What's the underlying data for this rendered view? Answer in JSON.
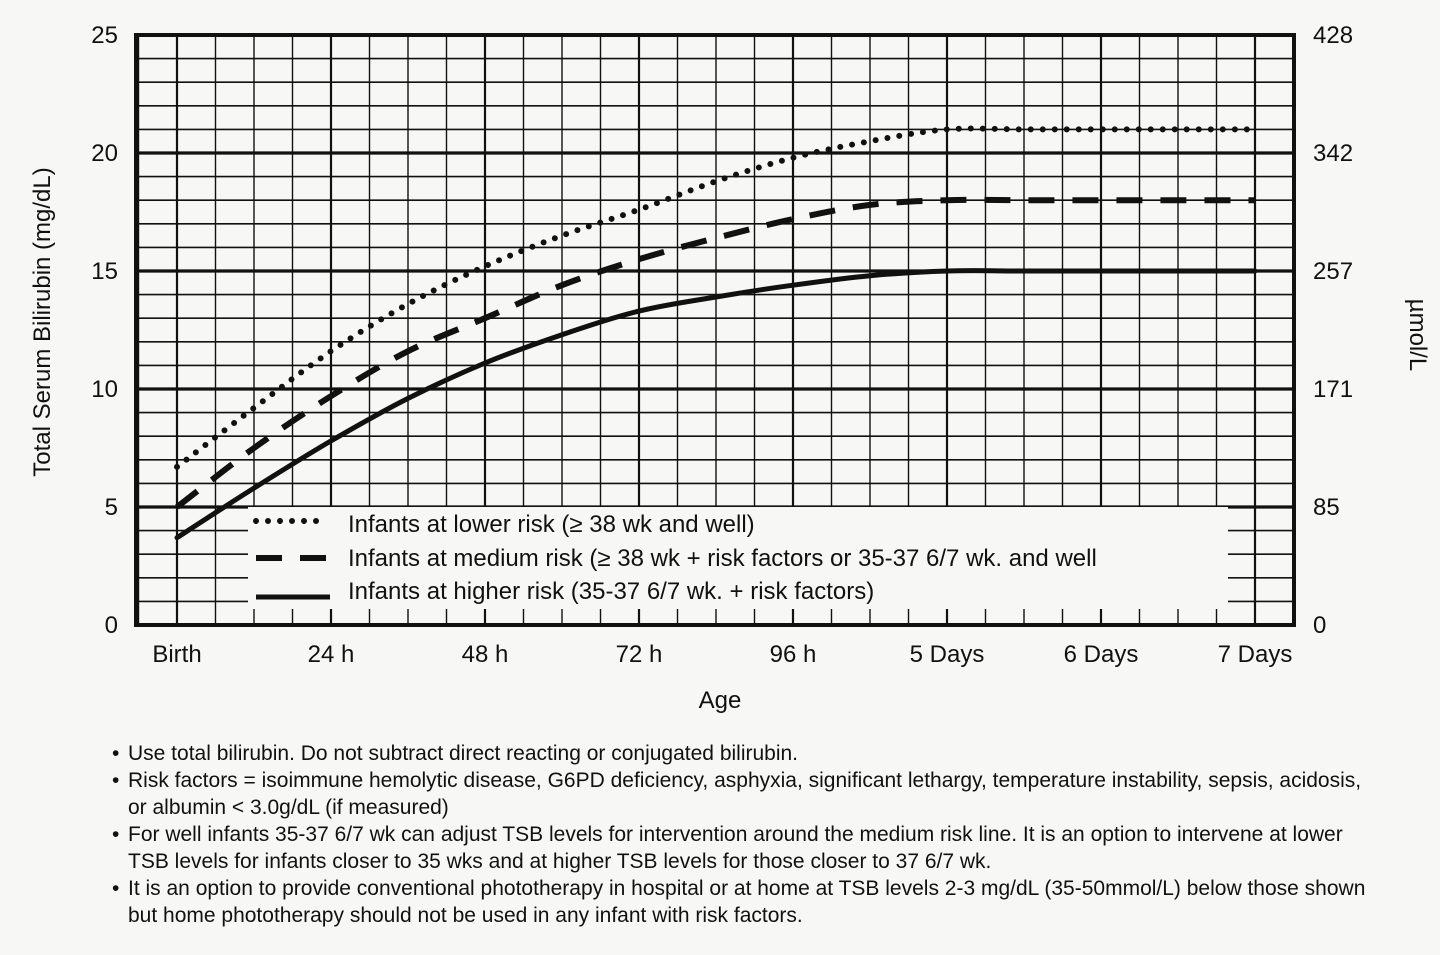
{
  "chart_data": {
    "type": "line",
    "title": "",
    "xlabel": "Age",
    "ylabel": "Total Serum Bilirubin (mg/dL)",
    "y2label": "µmol/L",
    "x_tick_labels": [
      "Birth",
      "24 h",
      "48 h",
      "72 h",
      "96 h",
      "5 Days",
      "6 Days",
      "7 Days"
    ],
    "x_unit": "hours",
    "xlim": [
      0,
      168
    ],
    "ylim": [
      0,
      25
    ],
    "y_ticks": [
      0,
      5,
      10,
      15,
      20,
      25
    ],
    "y2_ticks": [
      {
        "at": 0,
        "label": "0"
      },
      {
        "at": 5,
        "label": "85"
      },
      {
        "at": 10,
        "label": "171"
      },
      {
        "at": 15,
        "label": "257"
      },
      {
        "at": 20,
        "label": "342"
      },
      {
        "at": 25,
        "label": "428"
      }
    ],
    "grid": true,
    "legend_position": "bottom-center",
    "series": [
      {
        "name": "Infants at lower risk (≥ 38 wk and well)",
        "style": "dotted",
        "x": [
          0,
          12,
          24,
          36,
          48,
          60,
          72,
          84,
          96,
          108,
          120,
          132,
          144,
          156,
          168
        ],
        "y": [
          6.7,
          9.2,
          11.6,
          13.6,
          15.2,
          16.5,
          17.6,
          18.8,
          19.8,
          20.5,
          21.0,
          21.0,
          21.0,
          21.0,
          21.0
        ]
      },
      {
        "name": "Infants at medium risk (≥ 38 wk + risk factors or 35-37 6/7 wk. and well",
        "style": "dashed",
        "x": [
          0,
          12,
          24,
          36,
          48,
          60,
          72,
          84,
          96,
          108,
          120,
          132,
          144,
          156,
          168
        ],
        "y": [
          5.0,
          7.5,
          9.7,
          11.6,
          13.0,
          14.4,
          15.5,
          16.4,
          17.2,
          17.8,
          18.0,
          18.0,
          18.0,
          18.0,
          18.0
        ]
      },
      {
        "name": "Infants at higher risk (35-37 6/7 wk. + risk factors)",
        "style": "solid",
        "x": [
          0,
          12,
          24,
          36,
          48,
          60,
          72,
          84,
          96,
          108,
          120,
          132,
          144,
          156,
          168
        ],
        "y": [
          3.7,
          5.8,
          7.8,
          9.6,
          11.1,
          12.3,
          13.3,
          13.9,
          14.4,
          14.8,
          15.0,
          15.0,
          15.0,
          15.0,
          15.0
        ]
      }
    ]
  },
  "notes": [
    "Use total bilirubin. Do not subtract direct reacting or conjugated bilirubin.",
    "Risk factors = isoimmune hemolytic disease, G6PD deficiency, asphyxia, significant lethargy, temperature instability, sepsis, acidosis, or albumin < 3.0g/dL (if measured)",
    "For well infants 35-37 6/7 wk can adjust TSB levels for intervention around the medium risk line. It is an option to intervene at lower TSB levels for infants closer to 35 wks and at higher TSB levels for those closer to 37 6/7 wk.",
    "It is an option to provide conventional phototherapy in hospital or at home at TSB levels 2-3 mg/dL (35-50mmol/L) below those shown but home phototherapy should not be used in any infant with risk factors."
  ]
}
